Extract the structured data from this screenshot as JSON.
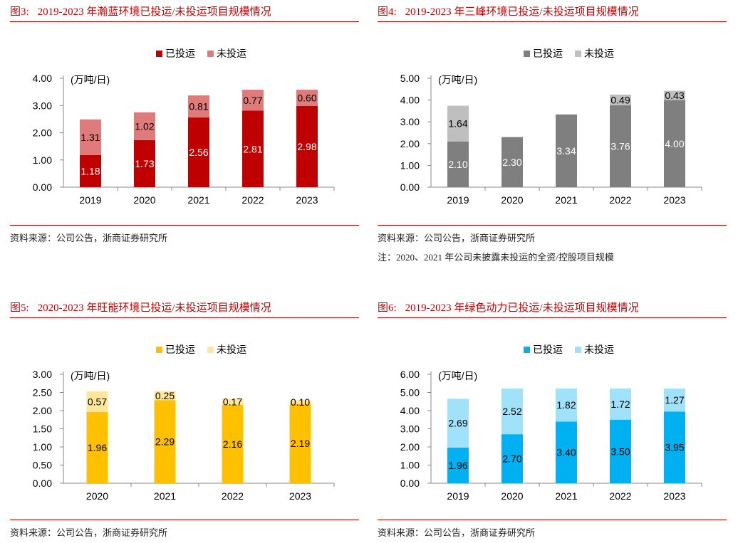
{
  "chart_data": [
    {
      "id": "fig3",
      "type": "bar",
      "stacked": true,
      "fig_no": "图3:",
      "title": "2019-2023 年瀚蓝环境已投运/未投运项目规模情况",
      "unit_label": "(万吨/日)",
      "categories": [
        "2019",
        "2020",
        "2021",
        "2022",
        "2023"
      ],
      "ylim": [
        0,
        4
      ],
      "yticks": [
        "0.00",
        "1.00",
        "2.00",
        "3.00",
        "4.00"
      ],
      "legend_position": "top-center",
      "series": [
        {
          "name": "已投运",
          "values": [
            1.18,
            1.73,
            2.56,
            2.81,
            2.98
          ],
          "color": "#c00000",
          "label_color": "#ffffff",
          "labels": [
            "1.18",
            "1.73",
            "2.56",
            "2.81",
            "2.98"
          ]
        },
        {
          "name": "未投运",
          "values": [
            1.31,
            1.02,
            0.81,
            0.77,
            0.6
          ],
          "color": "#e07b7b",
          "label_color": "#000000",
          "labels": [
            "1.31",
            "1.02",
            "0.81",
            "0.77",
            "0.60"
          ]
        }
      ],
      "source": "资料来源：公司公告，浙商证券研究所"
    },
    {
      "id": "fig4",
      "type": "bar",
      "stacked": true,
      "fig_no": "图4:",
      "title": "2019-2023 年三峰环境已投运/未投运项目规模情况",
      "unit_label": "(万吨/日)",
      "categories": [
        "2019",
        "2020",
        "2021",
        "2022",
        "2023"
      ],
      "ylim": [
        0,
        5
      ],
      "yticks": [
        "0.00",
        "1.00",
        "2.00",
        "3.00",
        "4.00",
        "5.00"
      ],
      "legend_position": "top-center",
      "series": [
        {
          "name": "已投运",
          "values": [
            2.1,
            2.3,
            3.34,
            3.76,
            4.0
          ],
          "color": "#7f7f7f",
          "label_color": "#ffffff",
          "labels": [
            "2.10",
            "2.30",
            "3.34",
            "3.76",
            "4.00"
          ]
        },
        {
          "name": "未投运",
          "values": [
            1.64,
            null,
            null,
            0.49,
            0.43
          ],
          "color": "#bfbfbf",
          "label_color": "#000000",
          "labels": [
            "1.64",
            "",
            "",
            "0.49",
            "0.43"
          ]
        }
      ],
      "source": "资料来源：公司公告，浙商证券研究所",
      "note": "注：2020、2021 年公司未披露未投运的全资/控股项目规模"
    },
    {
      "id": "fig5",
      "type": "bar",
      "stacked": true,
      "fig_no": "图5:",
      "title": "2020-2023 年旺能环境已投运/未投运项目规模情况",
      "unit_label": "(万吨/日)",
      "categories": [
        "2020",
        "2021",
        "2022",
        "2023"
      ],
      "ylim": [
        0,
        3
      ],
      "yticks": [
        "0.00",
        "0.50",
        "1.00",
        "1.50",
        "2.00",
        "2.50",
        "3.00"
      ],
      "legend_position": "top-center",
      "series": [
        {
          "name": "已投运",
          "values": [
            1.96,
            2.29,
            2.16,
            2.19
          ],
          "color": "#ffc000",
          "label_color": "#000000",
          "labels": [
            "1.96",
            "2.29",
            "2.16",
            "2.19"
          ]
        },
        {
          "name": "未投运",
          "values": [
            0.57,
            0.25,
            0.17,
            0.1
          ],
          "color": "#ffe699",
          "label_color": "#000000",
          "labels": [
            "0.57",
            "0.25",
            "0.17",
            "0.10"
          ]
        }
      ],
      "source": "资料来源：公司公告，浙商证券研究所"
    },
    {
      "id": "fig6",
      "type": "bar",
      "stacked": true,
      "fig_no": "图6:",
      "title": "2019-2023 年绿色动力已投运/未投运项目规模情况",
      "unit_label": "(万吨/日)",
      "categories": [
        "2019",
        "2020",
        "2021",
        "2022",
        "2023"
      ],
      "ylim": [
        0,
        6
      ],
      "yticks": [
        "0.00",
        "1.00",
        "2.00",
        "3.00",
        "4.00",
        "5.00",
        "6.00"
      ],
      "legend_position": "top-center",
      "series": [
        {
          "name": "已投运",
          "values": [
            1.96,
            2.7,
            3.4,
            3.5,
            3.95
          ],
          "color": "#00b0f0",
          "label_color": "#000000",
          "labels": [
            "1.96",
            "2.70",
            "3.40",
            "3.50",
            "3.95"
          ]
        },
        {
          "name": "未投运",
          "values": [
            2.69,
            2.52,
            1.82,
            1.72,
            1.27
          ],
          "color": "#9fe2fa",
          "label_color": "#000000",
          "labels": [
            "2.69",
            "2.52",
            "1.82",
            "1.72",
            "1.27"
          ]
        }
      ],
      "source": "资料来源：公司公告，浙商证券研究所"
    }
  ]
}
